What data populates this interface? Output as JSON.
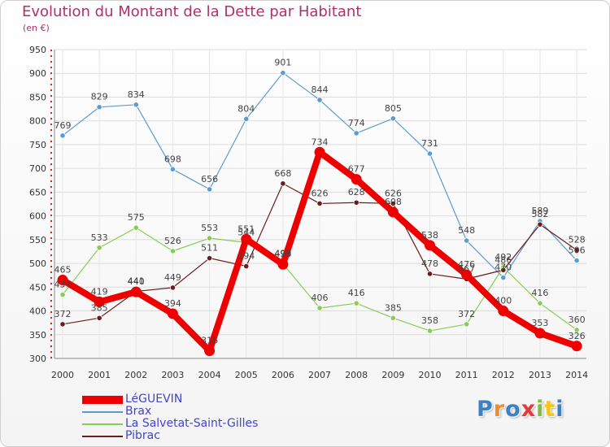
{
  "chart_data": {
    "type": "line",
    "title": "Evolution du Montant de la Dette par Habitant",
    "subtitle": "(en €)",
    "categories": [
      "2000",
      "2001",
      "2002",
      "2003",
      "2004",
      "2005",
      "2006",
      "2007",
      "2008",
      "2009",
      "2010",
      "2011",
      "2012",
      "2013",
      "2014"
    ],
    "ylim": [
      300,
      950
    ],
    "yticks": [
      300,
      350,
      400,
      450,
      500,
      550,
      600,
      650,
      700,
      750,
      800,
      850,
      900,
      950
    ],
    "grid": true,
    "series": [
      {
        "name": "LéGUEVIN",
        "color": "#ee0000",
        "values": [
          465,
          419,
          440,
          394,
          316,
          551,
          498,
          734,
          677,
          608,
          538,
          476,
          400,
          353,
          326
        ]
      },
      {
        "name": "Brax",
        "color": "#5c9bd1",
        "values": [
          769,
          829,
          834,
          698,
          656,
          804,
          901,
          844,
          774,
          805,
          731,
          548,
          470,
          589,
          506
        ]
      },
      {
        "name": "La Salvetat-Saint-Gilles",
        "color": "#88cc55",
        "values": [
          434,
          533,
          575,
          526,
          553,
          544,
          499,
          406,
          416,
          385,
          358,
          372,
          492,
          416,
          360
        ]
      },
      {
        "name": "Pibrac",
        "color": "#6b1c1c",
        "values": [
          372,
          385,
          441,
          449,
          511,
          494,
          668,
          626,
          628,
          626,
          478,
          467,
          486,
          582,
          528
        ]
      }
    ],
    "legend_position": "bottom-left"
  },
  "logo": {
    "text": "Proxiti",
    "letters": [
      "P",
      "r",
      "o",
      "x",
      "i",
      "t",
      "i"
    ],
    "colors": [
      "#3b82c4",
      "#f28c28",
      "#3b82c4",
      "#e03c3c",
      "#7cbf3c",
      "#f2c41c",
      "#3b82c4"
    ]
  }
}
